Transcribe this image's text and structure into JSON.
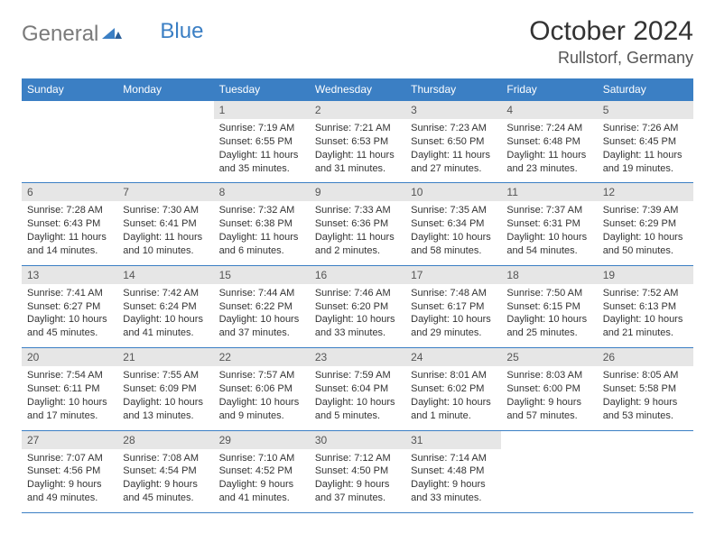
{
  "brand": {
    "part1": "General",
    "part2": "Blue"
  },
  "title": "October 2024",
  "location": "Rullstorf, Germany",
  "colors": {
    "header_bg": "#3b7fc4",
    "header_text": "#ffffff",
    "daynum_bg": "#e6e6e6",
    "border": "#3b7fc4",
    "text": "#333333",
    "page_bg": "#ffffff"
  },
  "day_names": [
    "Sunday",
    "Monday",
    "Tuesday",
    "Wednesday",
    "Thursday",
    "Friday",
    "Saturday"
  ],
  "weeks": [
    [
      null,
      null,
      {
        "n": "1",
        "sr": "Sunrise: 7:19 AM",
        "ss": "Sunset: 6:55 PM",
        "dl": "Daylight: 11 hours and 35 minutes."
      },
      {
        "n": "2",
        "sr": "Sunrise: 7:21 AM",
        "ss": "Sunset: 6:53 PM",
        "dl": "Daylight: 11 hours and 31 minutes."
      },
      {
        "n": "3",
        "sr": "Sunrise: 7:23 AM",
        "ss": "Sunset: 6:50 PM",
        "dl": "Daylight: 11 hours and 27 minutes."
      },
      {
        "n": "4",
        "sr": "Sunrise: 7:24 AM",
        "ss": "Sunset: 6:48 PM",
        "dl": "Daylight: 11 hours and 23 minutes."
      },
      {
        "n": "5",
        "sr": "Sunrise: 7:26 AM",
        "ss": "Sunset: 6:45 PM",
        "dl": "Daylight: 11 hours and 19 minutes."
      }
    ],
    [
      {
        "n": "6",
        "sr": "Sunrise: 7:28 AM",
        "ss": "Sunset: 6:43 PM",
        "dl": "Daylight: 11 hours and 14 minutes."
      },
      {
        "n": "7",
        "sr": "Sunrise: 7:30 AM",
        "ss": "Sunset: 6:41 PM",
        "dl": "Daylight: 11 hours and 10 minutes."
      },
      {
        "n": "8",
        "sr": "Sunrise: 7:32 AM",
        "ss": "Sunset: 6:38 PM",
        "dl": "Daylight: 11 hours and 6 minutes."
      },
      {
        "n": "9",
        "sr": "Sunrise: 7:33 AM",
        "ss": "Sunset: 6:36 PM",
        "dl": "Daylight: 11 hours and 2 minutes."
      },
      {
        "n": "10",
        "sr": "Sunrise: 7:35 AM",
        "ss": "Sunset: 6:34 PM",
        "dl": "Daylight: 10 hours and 58 minutes."
      },
      {
        "n": "11",
        "sr": "Sunrise: 7:37 AM",
        "ss": "Sunset: 6:31 PM",
        "dl": "Daylight: 10 hours and 54 minutes."
      },
      {
        "n": "12",
        "sr": "Sunrise: 7:39 AM",
        "ss": "Sunset: 6:29 PM",
        "dl": "Daylight: 10 hours and 50 minutes."
      }
    ],
    [
      {
        "n": "13",
        "sr": "Sunrise: 7:41 AM",
        "ss": "Sunset: 6:27 PM",
        "dl": "Daylight: 10 hours and 45 minutes."
      },
      {
        "n": "14",
        "sr": "Sunrise: 7:42 AM",
        "ss": "Sunset: 6:24 PM",
        "dl": "Daylight: 10 hours and 41 minutes."
      },
      {
        "n": "15",
        "sr": "Sunrise: 7:44 AM",
        "ss": "Sunset: 6:22 PM",
        "dl": "Daylight: 10 hours and 37 minutes."
      },
      {
        "n": "16",
        "sr": "Sunrise: 7:46 AM",
        "ss": "Sunset: 6:20 PM",
        "dl": "Daylight: 10 hours and 33 minutes."
      },
      {
        "n": "17",
        "sr": "Sunrise: 7:48 AM",
        "ss": "Sunset: 6:17 PM",
        "dl": "Daylight: 10 hours and 29 minutes."
      },
      {
        "n": "18",
        "sr": "Sunrise: 7:50 AM",
        "ss": "Sunset: 6:15 PM",
        "dl": "Daylight: 10 hours and 25 minutes."
      },
      {
        "n": "19",
        "sr": "Sunrise: 7:52 AM",
        "ss": "Sunset: 6:13 PM",
        "dl": "Daylight: 10 hours and 21 minutes."
      }
    ],
    [
      {
        "n": "20",
        "sr": "Sunrise: 7:54 AM",
        "ss": "Sunset: 6:11 PM",
        "dl": "Daylight: 10 hours and 17 minutes."
      },
      {
        "n": "21",
        "sr": "Sunrise: 7:55 AM",
        "ss": "Sunset: 6:09 PM",
        "dl": "Daylight: 10 hours and 13 minutes."
      },
      {
        "n": "22",
        "sr": "Sunrise: 7:57 AM",
        "ss": "Sunset: 6:06 PM",
        "dl": "Daylight: 10 hours and 9 minutes."
      },
      {
        "n": "23",
        "sr": "Sunrise: 7:59 AM",
        "ss": "Sunset: 6:04 PM",
        "dl": "Daylight: 10 hours and 5 minutes."
      },
      {
        "n": "24",
        "sr": "Sunrise: 8:01 AM",
        "ss": "Sunset: 6:02 PM",
        "dl": "Daylight: 10 hours and 1 minute."
      },
      {
        "n": "25",
        "sr": "Sunrise: 8:03 AM",
        "ss": "Sunset: 6:00 PM",
        "dl": "Daylight: 9 hours and 57 minutes."
      },
      {
        "n": "26",
        "sr": "Sunrise: 8:05 AM",
        "ss": "Sunset: 5:58 PM",
        "dl": "Daylight: 9 hours and 53 minutes."
      }
    ],
    [
      {
        "n": "27",
        "sr": "Sunrise: 7:07 AM",
        "ss": "Sunset: 4:56 PM",
        "dl": "Daylight: 9 hours and 49 minutes."
      },
      {
        "n": "28",
        "sr": "Sunrise: 7:08 AM",
        "ss": "Sunset: 4:54 PM",
        "dl": "Daylight: 9 hours and 45 minutes."
      },
      {
        "n": "29",
        "sr": "Sunrise: 7:10 AM",
        "ss": "Sunset: 4:52 PM",
        "dl": "Daylight: 9 hours and 41 minutes."
      },
      {
        "n": "30",
        "sr": "Sunrise: 7:12 AM",
        "ss": "Sunset: 4:50 PM",
        "dl": "Daylight: 9 hours and 37 minutes."
      },
      {
        "n": "31",
        "sr": "Sunrise: 7:14 AM",
        "ss": "Sunset: 4:48 PM",
        "dl": "Daylight: 9 hours and 33 minutes."
      },
      null,
      null
    ]
  ]
}
